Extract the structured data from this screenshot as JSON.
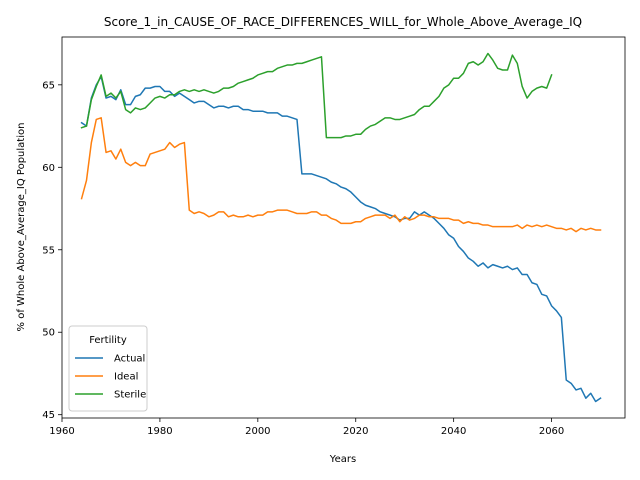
{
  "chart_data": {
    "type": "line",
    "title": "Score_1_in_CAUSE_OF_RACE_DIFFERENCES_WILL_for_Whole_Above_Average_IQ",
    "xlabel": "Years",
    "ylabel": "% of Whole Above_Average_IQ Population",
    "xlim": [
      1960,
      2075
    ],
    "ylim": [
      44.8,
      67.9
    ],
    "xticks": [
      1960,
      1980,
      2000,
      2020,
      2040,
      2060
    ],
    "yticks": [
      45,
      50,
      55,
      60,
      65
    ],
    "grid": false,
    "legend": {
      "title": "Fertility",
      "placement": "lower-left",
      "entries": [
        "Actual",
        "Ideal",
        "Sterile"
      ]
    },
    "colors": {
      "Actual": "#1f77b4",
      "Ideal": "#ff7f0e",
      "Sterile": "#2ca02c"
    },
    "series": [
      {
        "name": "Actual",
        "points": [
          [
            1964,
            62.7
          ],
          [
            1965,
            62.5
          ],
          [
            1966,
            64.2
          ],
          [
            1967,
            65.0
          ],
          [
            1968,
            65.5
          ],
          [
            1969,
            64.2
          ],
          [
            1970,
            64.3
          ],
          [
            1971,
            64.1
          ],
          [
            1972,
            64.7
          ],
          [
            1973,
            63.8
          ],
          [
            1974,
            63.8
          ],
          [
            1975,
            64.3
          ],
          [
            1976,
            64.4
          ],
          [
            1977,
            64.8
          ],
          [
            1978,
            64.8
          ],
          [
            1979,
            64.9
          ],
          [
            1980,
            64.9
          ],
          [
            1981,
            64.6
          ],
          [
            1982,
            64.6
          ],
          [
            1983,
            64.3
          ],
          [
            1984,
            64.5
          ],
          [
            1985,
            64.3
          ],
          [
            1986,
            64.1
          ],
          [
            1987,
            63.9
          ],
          [
            1988,
            64.0
          ],
          [
            1989,
            64.0
          ],
          [
            1990,
            63.8
          ],
          [
            1991,
            63.6
          ],
          [
            1992,
            63.7
          ],
          [
            1993,
            63.7
          ],
          [
            1994,
            63.6
          ],
          [
            1995,
            63.7
          ],
          [
            1996,
            63.7
          ],
          [
            1997,
            63.5
          ],
          [
            1998,
            63.5
          ],
          [
            1999,
            63.4
          ],
          [
            2000,
            63.4
          ],
          [
            2001,
            63.4
          ],
          [
            2002,
            63.3
          ],
          [
            2003,
            63.3
          ],
          [
            2004,
            63.3
          ],
          [
            2005,
            63.1
          ],
          [
            2006,
            63.1
          ],
          [
            2007,
            63.0
          ],
          [
            2008,
            62.9
          ],
          [
            2009,
            59.6
          ],
          [
            2010,
            59.6
          ],
          [
            2011,
            59.6
          ],
          [
            2012,
            59.5
          ],
          [
            2013,
            59.4
          ],
          [
            2014,
            59.3
          ],
          [
            2015,
            59.1
          ],
          [
            2016,
            59.0
          ],
          [
            2017,
            58.8
          ],
          [
            2018,
            58.7
          ],
          [
            2019,
            58.5
          ],
          [
            2020,
            58.2
          ],
          [
            2021,
            57.9
          ],
          [
            2022,
            57.7
          ],
          [
            2023,
            57.6
          ],
          [
            2024,
            57.5
          ],
          [
            2025,
            57.3
          ],
          [
            2026,
            57.2
          ],
          [
            2027,
            57.1
          ],
          [
            2028,
            57.0
          ],
          [
            2029,
            56.8
          ],
          [
            2030,
            56.9
          ],
          [
            2031,
            56.9
          ],
          [
            2032,
            57.3
          ],
          [
            2033,
            57.1
          ],
          [
            2034,
            57.3
          ],
          [
            2035,
            57.1
          ],
          [
            2036,
            56.9
          ],
          [
            2037,
            56.6
          ],
          [
            2038,
            56.3
          ],
          [
            2039,
            55.9
          ],
          [
            2040,
            55.7
          ],
          [
            2041,
            55.2
          ],
          [
            2042,
            54.9
          ],
          [
            2043,
            54.5
          ],
          [
            2044,
            54.3
          ],
          [
            2045,
            54.0
          ],
          [
            2046,
            54.2
          ],
          [
            2047,
            53.9
          ],
          [
            2048,
            54.1
          ],
          [
            2049,
            54.0
          ],
          [
            2050,
            53.9
          ],
          [
            2051,
            54.0
          ],
          [
            2052,
            53.8
          ],
          [
            2053,
            53.9
          ],
          [
            2054,
            53.5
          ],
          [
            2055,
            53.5
          ],
          [
            2056,
            53.0
          ],
          [
            2057,
            52.9
          ],
          [
            2058,
            52.3
          ],
          [
            2059,
            52.2
          ],
          [
            2060,
            51.6
          ],
          [
            2061,
            51.3
          ],
          [
            2062,
            50.9
          ],
          [
            2063,
            47.1
          ],
          [
            2064,
            46.9
          ],
          [
            2065,
            46.5
          ],
          [
            2066,
            46.6
          ],
          [
            2067,
            46.0
          ],
          [
            2068,
            46.3
          ],
          [
            2069,
            45.8
          ],
          [
            2070,
            46.0
          ]
        ]
      },
      {
        "name": "Ideal",
        "points": [
          [
            1964,
            58.1
          ],
          [
            1965,
            59.2
          ],
          [
            1966,
            61.5
          ],
          [
            1967,
            62.9
          ],
          [
            1968,
            63.0
          ],
          [
            1969,
            60.9
          ],
          [
            1970,
            61.0
          ],
          [
            1971,
            60.5
          ],
          [
            1972,
            61.1
          ],
          [
            1973,
            60.3
          ],
          [
            1974,
            60.1
          ],
          [
            1975,
            60.3
          ],
          [
            1976,
            60.1
          ],
          [
            1977,
            60.1
          ],
          [
            1978,
            60.8
          ],
          [
            1979,
            60.9
          ],
          [
            1980,
            61.0
          ],
          [
            1981,
            61.1
          ],
          [
            1982,
            61.5
          ],
          [
            1983,
            61.2
          ],
          [
            1984,
            61.4
          ],
          [
            1985,
            61.5
          ],
          [
            1986,
            57.4
          ],
          [
            1987,
            57.2
          ],
          [
            1988,
            57.3
          ],
          [
            1989,
            57.2
          ],
          [
            1990,
            57.0
          ],
          [
            1991,
            57.1
          ],
          [
            1992,
            57.3
          ],
          [
            1993,
            57.3
          ],
          [
            1994,
            57.0
          ],
          [
            1995,
            57.1
          ],
          [
            1996,
            57.0
          ],
          [
            1997,
            57.0
          ],
          [
            1998,
            57.1
          ],
          [
            1999,
            57.0
          ],
          [
            2000,
            57.1
          ],
          [
            2001,
            57.1
          ],
          [
            2002,
            57.3
          ],
          [
            2003,
            57.3
          ],
          [
            2004,
            57.4
          ],
          [
            2005,
            57.4
          ],
          [
            2006,
            57.4
          ],
          [
            2007,
            57.3
          ],
          [
            2008,
            57.2
          ],
          [
            2009,
            57.2
          ],
          [
            2010,
            57.2
          ],
          [
            2011,
            57.3
          ],
          [
            2012,
            57.3
          ],
          [
            2013,
            57.1
          ],
          [
            2014,
            57.1
          ],
          [
            2015,
            56.9
          ],
          [
            2016,
            56.8
          ],
          [
            2017,
            56.6
          ],
          [
            2018,
            56.6
          ],
          [
            2019,
            56.6
          ],
          [
            2020,
            56.7
          ],
          [
            2021,
            56.7
          ],
          [
            2022,
            56.9
          ],
          [
            2023,
            57.0
          ],
          [
            2024,
            57.1
          ],
          [
            2025,
            57.1
          ],
          [
            2026,
            57.1
          ],
          [
            2027,
            56.9
          ],
          [
            2028,
            57.1
          ],
          [
            2029,
            56.7
          ],
          [
            2030,
            57.0
          ],
          [
            2031,
            56.8
          ],
          [
            2032,
            56.9
          ],
          [
            2033,
            57.1
          ],
          [
            2034,
            57.1
          ],
          [
            2035,
            57.0
          ],
          [
            2036,
            57.0
          ],
          [
            2037,
            56.9
          ],
          [
            2038,
            56.9
          ],
          [
            2039,
            56.9
          ],
          [
            2040,
            56.8
          ],
          [
            2041,
            56.8
          ],
          [
            2042,
            56.6
          ],
          [
            2043,
            56.7
          ],
          [
            2044,
            56.6
          ],
          [
            2045,
            56.6
          ],
          [
            2046,
            56.5
          ],
          [
            2047,
            56.5
          ],
          [
            2048,
            56.4
          ],
          [
            2049,
            56.4
          ],
          [
            2050,
            56.4
          ],
          [
            2051,
            56.4
          ],
          [
            2052,
            56.4
          ],
          [
            2053,
            56.5
          ],
          [
            2054,
            56.3
          ],
          [
            2055,
            56.5
          ],
          [
            2056,
            56.4
          ],
          [
            2057,
            56.5
          ],
          [
            2058,
            56.4
          ],
          [
            2059,
            56.5
          ],
          [
            2060,
            56.4
          ],
          [
            2061,
            56.3
          ],
          [
            2062,
            56.3
          ],
          [
            2063,
            56.2
          ],
          [
            2064,
            56.3
          ],
          [
            2065,
            56.1
          ],
          [
            2066,
            56.3
          ],
          [
            2067,
            56.2
          ],
          [
            2068,
            56.3
          ],
          [
            2069,
            56.2
          ],
          [
            2070,
            56.2
          ]
        ]
      },
      {
        "name": "Sterile",
        "points": [
          [
            1964,
            62.4
          ],
          [
            1965,
            62.5
          ],
          [
            1966,
            64.1
          ],
          [
            1967,
            64.9
          ],
          [
            1968,
            65.6
          ],
          [
            1969,
            64.3
          ],
          [
            1970,
            64.5
          ],
          [
            1971,
            64.2
          ],
          [
            1972,
            64.6
          ],
          [
            1973,
            63.5
          ],
          [
            1974,
            63.3
          ],
          [
            1975,
            63.6
          ],
          [
            1976,
            63.5
          ],
          [
            1977,
            63.6
          ],
          [
            1978,
            63.9
          ],
          [
            1979,
            64.2
          ],
          [
            1980,
            64.3
          ],
          [
            1981,
            64.2
          ],
          [
            1982,
            64.4
          ],
          [
            1983,
            64.4
          ],
          [
            1984,
            64.6
          ],
          [
            1985,
            64.7
          ],
          [
            1986,
            64.6
          ],
          [
            1987,
            64.7
          ],
          [
            1988,
            64.6
          ],
          [
            1989,
            64.7
          ],
          [
            1990,
            64.6
          ],
          [
            1991,
            64.5
          ],
          [
            1992,
            64.6
          ],
          [
            1993,
            64.8
          ],
          [
            1994,
            64.8
          ],
          [
            1995,
            64.9
          ],
          [
            1996,
            65.1
          ],
          [
            1997,
            65.2
          ],
          [
            1998,
            65.3
          ],
          [
            1999,
            65.4
          ],
          [
            2000,
            65.6
          ],
          [
            2001,
            65.7
          ],
          [
            2002,
            65.8
          ],
          [
            2003,
            65.8
          ],
          [
            2004,
            66.0
          ],
          [
            2005,
            66.1
          ],
          [
            2006,
            66.2
          ],
          [
            2007,
            66.2
          ],
          [
            2008,
            66.3
          ],
          [
            2009,
            66.3
          ],
          [
            2010,
            66.4
          ],
          [
            2011,
            66.5
          ],
          [
            2012,
            66.6
          ],
          [
            2013,
            66.7
          ],
          [
            2014,
            61.8
          ],
          [
            2015,
            61.8
          ],
          [
            2016,
            61.8
          ],
          [
            2017,
            61.8
          ],
          [
            2018,
            61.9
          ],
          [
            2019,
            61.9
          ],
          [
            2020,
            62.0
          ],
          [
            2021,
            62.0
          ],
          [
            2022,
            62.3
          ],
          [
            2023,
            62.5
          ],
          [
            2024,
            62.6
          ],
          [
            2025,
            62.8
          ],
          [
            2026,
            63.0
          ],
          [
            2027,
            63.0
          ],
          [
            2028,
            62.9
          ],
          [
            2029,
            62.9
          ],
          [
            2030,
            63.0
          ],
          [
            2031,
            63.1
          ],
          [
            2032,
            63.2
          ],
          [
            2033,
            63.5
          ],
          [
            2034,
            63.7
          ],
          [
            2035,
            63.7
          ],
          [
            2036,
            64.0
          ],
          [
            2037,
            64.3
          ],
          [
            2038,
            64.8
          ],
          [
            2039,
            65.0
          ],
          [
            2040,
            65.4
          ],
          [
            2041,
            65.4
          ],
          [
            2042,
            65.7
          ],
          [
            2043,
            66.3
          ],
          [
            2044,
            66.4
          ],
          [
            2045,
            66.2
          ],
          [
            2046,
            66.4
          ],
          [
            2047,
            66.9
          ],
          [
            2048,
            66.5
          ],
          [
            2049,
            66.0
          ],
          [
            2050,
            65.9
          ],
          [
            2051,
            65.9
          ],
          [
            2052,
            66.8
          ],
          [
            2053,
            66.3
          ],
          [
            2054,
            64.9
          ],
          [
            2055,
            64.2
          ],
          [
            2056,
            64.6
          ],
          [
            2057,
            64.8
          ],
          [
            2058,
            64.9
          ],
          [
            2059,
            64.8
          ],
          [
            2060,
            65.6
          ]
        ]
      }
    ]
  }
}
